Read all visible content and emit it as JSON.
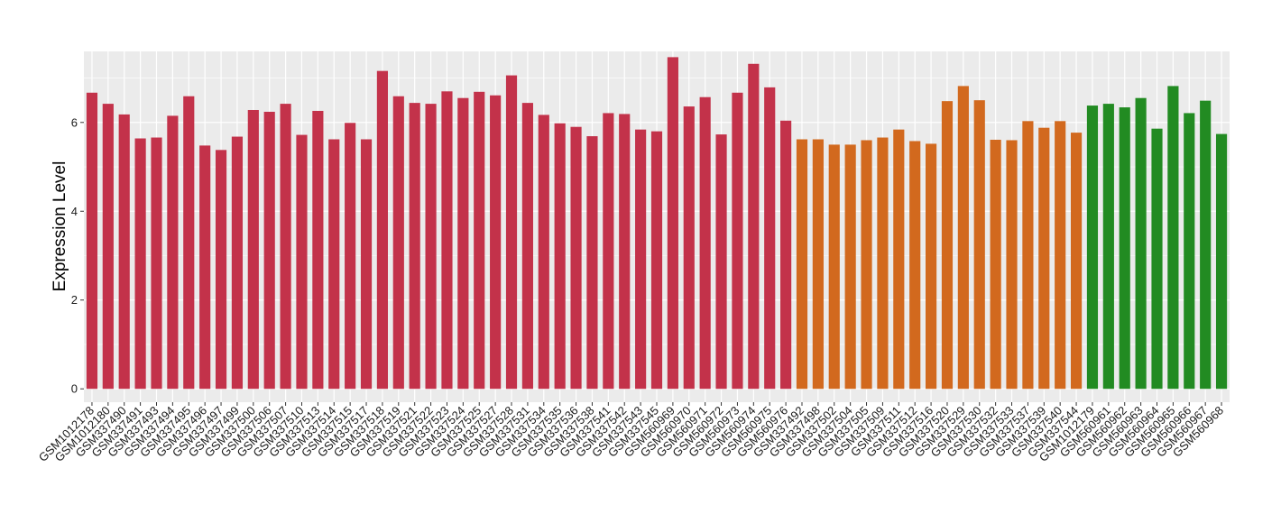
{
  "chart_data": {
    "type": "bar",
    "title": "",
    "xlabel": "",
    "ylabel": "Expression Level",
    "ylim": [
      -0.3,
      7.6
    ],
    "yticks": [
      0,
      2,
      4,
      6
    ],
    "grid": true,
    "legend": "none",
    "colors": {
      "red": "#c3324a",
      "orange": "#d2691e",
      "green": "#228b22",
      "panel": "#ebebeb",
      "grid": "#ffffff"
    },
    "bars": [
      {
        "label": "GSM1012178",
        "value": 6.67,
        "group": "red"
      },
      {
        "label": "GSM1012180",
        "value": 6.42,
        "group": "red"
      },
      {
        "label": "GSM337490",
        "value": 6.18,
        "group": "red"
      },
      {
        "label": "GSM337491",
        "value": 5.64,
        "group": "red"
      },
      {
        "label": "GSM337493",
        "value": 5.66,
        "group": "red"
      },
      {
        "label": "GSM337494",
        "value": 6.15,
        "group": "red"
      },
      {
        "label": "GSM337495",
        "value": 6.59,
        "group": "red"
      },
      {
        "label": "GSM337496",
        "value": 5.48,
        "group": "red"
      },
      {
        "label": "GSM337497",
        "value": 5.38,
        "group": "red"
      },
      {
        "label": "GSM337499",
        "value": 5.68,
        "group": "red"
      },
      {
        "label": "GSM337500",
        "value": 6.28,
        "group": "red"
      },
      {
        "label": "GSM337506",
        "value": 6.24,
        "group": "red"
      },
      {
        "label": "GSM337507",
        "value": 6.42,
        "group": "red"
      },
      {
        "label": "GSM337510",
        "value": 5.72,
        "group": "red"
      },
      {
        "label": "GSM337513",
        "value": 6.26,
        "group": "red"
      },
      {
        "label": "GSM337514",
        "value": 5.62,
        "group": "red"
      },
      {
        "label": "GSM337515",
        "value": 5.99,
        "group": "red"
      },
      {
        "label": "GSM337517",
        "value": 5.62,
        "group": "red"
      },
      {
        "label": "GSM337518",
        "value": 7.16,
        "group": "red"
      },
      {
        "label": "GSM337519",
        "value": 6.59,
        "group": "red"
      },
      {
        "label": "GSM337521",
        "value": 6.44,
        "group": "red"
      },
      {
        "label": "GSM337522",
        "value": 6.42,
        "group": "red"
      },
      {
        "label": "GSM337523",
        "value": 6.7,
        "group": "red"
      },
      {
        "label": "GSM337524",
        "value": 6.55,
        "group": "red"
      },
      {
        "label": "GSM337525",
        "value": 6.69,
        "group": "red"
      },
      {
        "label": "GSM337527",
        "value": 6.61,
        "group": "red"
      },
      {
        "label": "GSM337528",
        "value": 7.06,
        "group": "red"
      },
      {
        "label": "GSM337531",
        "value": 6.44,
        "group": "red"
      },
      {
        "label": "GSM337534",
        "value": 6.17,
        "group": "red"
      },
      {
        "label": "GSM337535",
        "value": 5.98,
        "group": "red"
      },
      {
        "label": "GSM337536",
        "value": 5.9,
        "group": "red"
      },
      {
        "label": "GSM337538",
        "value": 5.69,
        "group": "red"
      },
      {
        "label": "GSM337541",
        "value": 6.21,
        "group": "red"
      },
      {
        "label": "GSM337542",
        "value": 6.19,
        "group": "red"
      },
      {
        "label": "GSM337543",
        "value": 5.84,
        "group": "red"
      },
      {
        "label": "GSM337545",
        "value": 5.8,
        "group": "red"
      },
      {
        "label": "GSM560969",
        "value": 7.47,
        "group": "red"
      },
      {
        "label": "GSM560970",
        "value": 6.36,
        "group": "red"
      },
      {
        "label": "GSM560971",
        "value": 6.57,
        "group": "red"
      },
      {
        "label": "GSM560972",
        "value": 5.73,
        "group": "red"
      },
      {
        "label": "GSM560973",
        "value": 6.67,
        "group": "red"
      },
      {
        "label": "GSM560974",
        "value": 7.32,
        "group": "red"
      },
      {
        "label": "GSM560975",
        "value": 6.79,
        "group": "red"
      },
      {
        "label": "GSM560976",
        "value": 6.04,
        "group": "red"
      },
      {
        "label": "GSM337492",
        "value": 5.62,
        "group": "orange"
      },
      {
        "label": "GSM337498",
        "value": 5.62,
        "group": "orange"
      },
      {
        "label": "GSM337502",
        "value": 5.5,
        "group": "orange"
      },
      {
        "label": "GSM337504",
        "value": 5.5,
        "group": "orange"
      },
      {
        "label": "GSM337505",
        "value": 5.6,
        "group": "orange"
      },
      {
        "label": "GSM337509",
        "value": 5.66,
        "group": "orange"
      },
      {
        "label": "GSM337511",
        "value": 5.84,
        "group": "orange"
      },
      {
        "label": "GSM337512",
        "value": 5.58,
        "group": "orange"
      },
      {
        "label": "GSM337516",
        "value": 5.52,
        "group": "orange"
      },
      {
        "label": "GSM337520",
        "value": 6.48,
        "group": "orange"
      },
      {
        "label": "GSM337529",
        "value": 6.82,
        "group": "orange"
      },
      {
        "label": "GSM337530",
        "value": 6.5,
        "group": "orange"
      },
      {
        "label": "GSM337532",
        "value": 5.61,
        "group": "orange"
      },
      {
        "label": "GSM337533",
        "value": 5.6,
        "group": "orange"
      },
      {
        "label": "GSM337537",
        "value": 6.03,
        "group": "orange"
      },
      {
        "label": "GSM337539",
        "value": 5.88,
        "group": "orange"
      },
      {
        "label": "GSM337540",
        "value": 6.03,
        "group": "orange"
      },
      {
        "label": "GSM337544",
        "value": 5.77,
        "group": "orange"
      },
      {
        "label": "GSM1012179",
        "value": 6.38,
        "group": "green"
      },
      {
        "label": "GSM560961",
        "value": 6.42,
        "group": "green"
      },
      {
        "label": "GSM560962",
        "value": 6.34,
        "group": "green"
      },
      {
        "label": "GSM560963",
        "value": 6.55,
        "group": "green"
      },
      {
        "label": "GSM560964",
        "value": 5.86,
        "group": "green"
      },
      {
        "label": "GSM560965",
        "value": 6.82,
        "group": "green"
      },
      {
        "label": "GSM560966",
        "value": 6.21,
        "group": "green"
      },
      {
        "label": "GSM560967",
        "value": 6.49,
        "group": "green"
      },
      {
        "label": "GSM560968",
        "value": 5.74,
        "group": "green"
      }
    ]
  }
}
